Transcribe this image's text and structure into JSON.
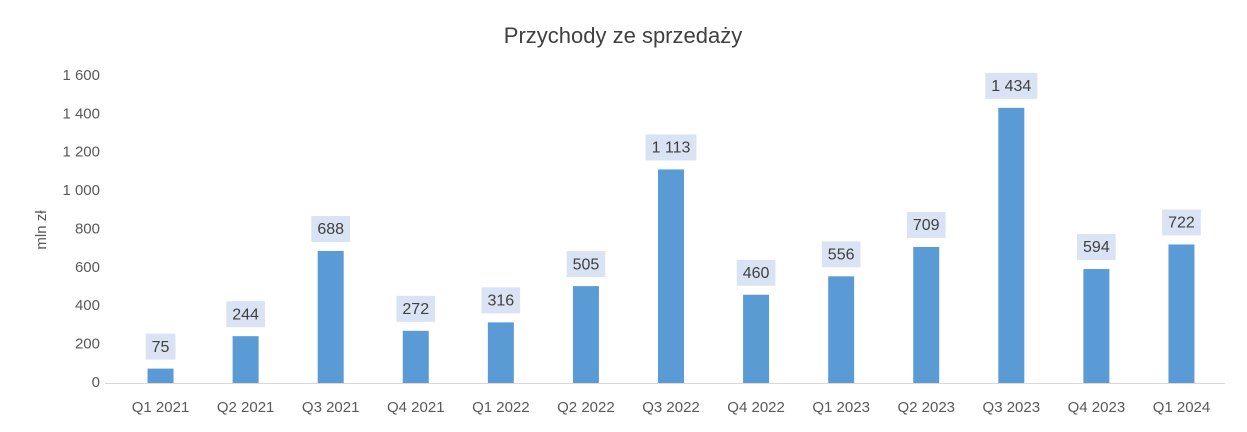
{
  "chart_data": {
    "type": "bar",
    "title": "Przychody ze sprzedaży",
    "y_axis_label": "mln zł",
    "categories": [
      "Q1 2021",
      "Q2 2021",
      "Q3 2021",
      "Q4 2021",
      "Q1 2022",
      "Q2 2022",
      "Q3 2022",
      "Q4 2022",
      "Q1 2023",
      "Q2 2023",
      "Q3 2023",
      "Q4 2023",
      "Q1 2024"
    ],
    "values": [
      75,
      244,
      688,
      272,
      316,
      505,
      1113,
      460,
      556,
      709,
      1434,
      594,
      722
    ],
    "value_labels": [
      "75",
      "244",
      "688",
      "272",
      "316",
      "505",
      "1 113",
      "460",
      "556",
      "709",
      "1 434",
      "594",
      "722"
    ],
    "color": "#5b9bd5",
    "label_background": "#dae3f3",
    "ylim": [
      0,
      1600
    ],
    "yticks": [
      0,
      200,
      400,
      600,
      800,
      {
        "value": 1000,
        "label": "1 000"
      },
      {
        "value": 1200,
        "label": "1 200"
      },
      {
        "value": 1400,
        "label": "1 400"
      },
      {
        "value": 1600,
        "label": "1 600"
      }
    ],
    "grid": false
  }
}
